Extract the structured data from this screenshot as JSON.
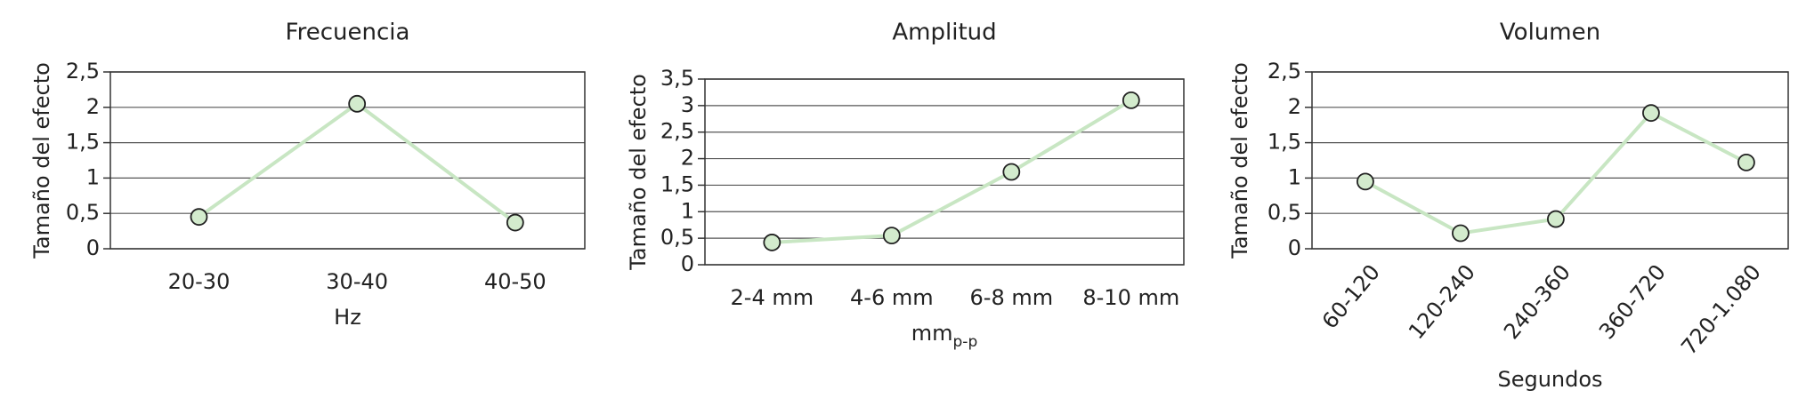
{
  "chart_data": [
    {
      "type": "line",
      "title": "Frecuencia",
      "ylabel": "Tamaño del efecto",
      "xlabel": "Hz",
      "categories": [
        "20-30",
        "30-40",
        "40-50"
      ],
      "values": [
        0.45,
        2.05,
        0.37
      ],
      "color": "#c8e6c3",
      "marker_color": "#d3ebcd",
      "ylim": [
        0,
        2.5
      ],
      "yticks": [
        0,
        {
          "value": 0.5,
          "label": "0,5"
        },
        1,
        {
          "value": 1.5,
          "label": "1,5"
        },
        2,
        {
          "value": 2.5,
          "label": "2,5"
        }
      ],
      "grid": true
    },
    {
      "type": "line",
      "title": "Amplitud",
      "ylabel": "Tamaño del efecto",
      "xlabel": {
        "base": "mm",
        "sub": "p-p"
      },
      "categories": [
        "2-4 mm",
        "4-6 mm",
        "6-8 mm",
        "8-10 mm"
      ],
      "values": [
        0.42,
        0.55,
        1.75,
        3.1
      ],
      "color": "#c8e6c3",
      "marker_color": "#d3ebcd",
      "ylim": [
        0,
        3.5
      ],
      "yticks": [
        0,
        {
          "value": 0.5,
          "label": "0,5"
        },
        1,
        {
          "value": 1.5,
          "label": "1,5"
        },
        2,
        {
          "value": 2.5,
          "label": "2,5"
        },
        3,
        {
          "value": 3.5,
          "label": "3,5"
        }
      ],
      "grid": true
    },
    {
      "type": "line",
      "title": "Volumen",
      "ylabel": "Tamaño del efecto",
      "xlabel": "Segundos",
      "categories": [
        "60-120",
        "120-240",
        "240-360",
        "360-720",
        "720-1.080"
      ],
      "values": [
        0.95,
        0.22,
        0.42,
        1.92,
        1.22
      ],
      "color": "#c8e6c3",
      "marker_color": "#d3ebcd",
      "ylim": [
        0,
        2.5
      ],
      "yticks": [
        0,
        {
          "value": 0.5,
          "label": "0,5"
        },
        1,
        {
          "value": 1.5,
          "label": "1,5"
        },
        2,
        {
          "value": 2.5,
          "label": "2,5"
        }
      ],
      "grid": true,
      "rotate_x_labels": true
    }
  ]
}
